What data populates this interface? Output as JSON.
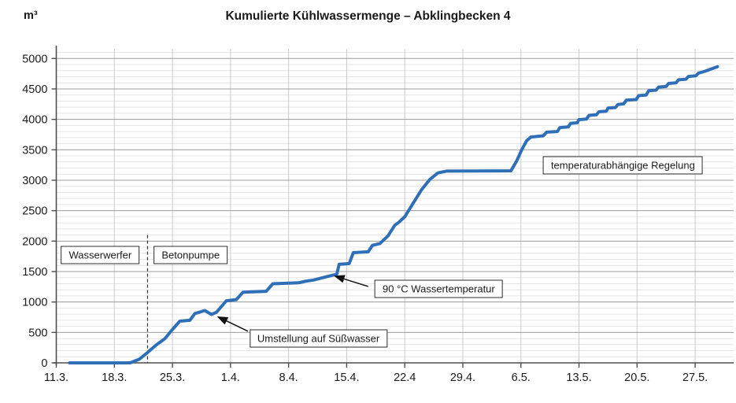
{
  "title": "Kumulierte Kühlwassermenge – Abklingbecken 4",
  "chart_data": {
    "type": "line",
    "title": "Kumulierte Kühlwassermenge – Abklingbecken 4",
    "y_unit_label": "m³",
    "ylim": [
      0,
      5000
    ],
    "y_ticks": [
      0,
      500,
      1000,
      1500,
      2000,
      2500,
      3000,
      3500,
      4000,
      4500,
      5000
    ],
    "grid": "major-and-minor, minor every 100 m³, vertical gridline per week",
    "legend_position": "none",
    "x_ticks": [
      {
        "day": 0,
        "label": "11.3."
      },
      {
        "day": 7,
        "label": "18.3."
      },
      {
        "day": 14,
        "label": "25.3."
      },
      {
        "day": 21,
        "label": "1.4."
      },
      {
        "day": 28,
        "label": "8.4."
      },
      {
        "day": 35,
        "label": "15.4."
      },
      {
        "day": 42,
        "label": "22.4"
      },
      {
        "day": 49,
        "label": "29.4."
      },
      {
        "day": 56,
        "label": "6.5."
      },
      {
        "day": 63,
        "label": "13.5."
      },
      {
        "day": 70,
        "label": "20.5."
      },
      {
        "day": 77,
        "label": "27.5."
      }
    ],
    "x_axis_note": "day = days after 11 March",
    "series": [
      {
        "name": "Kumulierte Kühlwassermenge Abklingbecken 4",
        "color": "#2e6fb8",
        "points": [
          [
            1.6,
            0
          ],
          [
            8.9,
            0
          ],
          [
            10.0,
            60
          ],
          [
            11.0,
            170
          ],
          [
            12.0,
            290
          ],
          [
            13.1,
            400
          ],
          [
            14.0,
            550
          ],
          [
            14.9,
            685
          ],
          [
            16.1,
            700
          ],
          [
            16.7,
            810
          ],
          [
            17.9,
            860
          ],
          [
            18.7,
            795
          ],
          [
            19.3,
            830
          ],
          [
            20.5,
            1020
          ],
          [
            21.7,
            1040
          ],
          [
            22.5,
            1160
          ],
          [
            25.3,
            1175
          ],
          [
            26.1,
            1300
          ],
          [
            29.2,
            1315
          ],
          [
            30.0,
            1340
          ],
          [
            31.0,
            1360
          ],
          [
            33.0,
            1430
          ],
          [
            33.8,
            1455
          ],
          [
            34.1,
            1620
          ],
          [
            35.3,
            1630
          ],
          [
            35.8,
            1810
          ],
          [
            37.6,
            1825
          ],
          [
            38.1,
            1930
          ],
          [
            39.0,
            1960
          ],
          [
            40.0,
            2090
          ],
          [
            40.8,
            2260
          ],
          [
            41.3,
            2310
          ],
          [
            42.0,
            2400
          ],
          [
            43.0,
            2620
          ],
          [
            44.0,
            2840
          ],
          [
            45.0,
            3010
          ],
          [
            46.0,
            3120
          ],
          [
            47.0,
            3150
          ],
          [
            54.8,
            3155
          ],
          [
            55.5,
            3320
          ],
          [
            56.1,
            3500
          ],
          [
            56.7,
            3650
          ],
          [
            57.2,
            3710
          ],
          [
            58.7,
            3730
          ],
          [
            59.1,
            3790
          ],
          [
            60.4,
            3800
          ],
          [
            60.7,
            3865
          ],
          [
            61.7,
            3875
          ],
          [
            62.0,
            3935
          ],
          [
            62.8,
            3945
          ],
          [
            63.0,
            3995
          ],
          [
            63.9,
            4005
          ],
          [
            64.2,
            4065
          ],
          [
            65.1,
            4075
          ],
          [
            65.4,
            4125
          ],
          [
            66.3,
            4135
          ],
          [
            66.5,
            4185
          ],
          [
            67.4,
            4195
          ],
          [
            67.7,
            4245
          ],
          [
            68.4,
            4255
          ],
          [
            68.7,
            4315
          ],
          [
            69.9,
            4325
          ],
          [
            70.2,
            4390
          ],
          [
            71.1,
            4400
          ],
          [
            71.4,
            4470
          ],
          [
            72.3,
            4480
          ],
          [
            72.6,
            4530
          ],
          [
            73.5,
            4540
          ],
          [
            73.8,
            4590
          ],
          [
            74.7,
            4600
          ],
          [
            75.0,
            4650
          ],
          [
            75.9,
            4660
          ],
          [
            76.2,
            4705
          ],
          [
            77.1,
            4715
          ],
          [
            77.4,
            4760
          ],
          [
            78.2,
            4790
          ],
          [
            79.0,
            4830
          ],
          [
            79.7,
            4865
          ]
        ]
      }
    ],
    "event_line": {
      "day": 11.0,
      "top_value": 2100,
      "style": "dashed",
      "meaning": "separates Wasserwerfer and Betonpumpe phases"
    },
    "annotations": [
      {
        "id": "wasserwerfer",
        "label": "Wasserwerfer",
        "center_day": 5.3,
        "center_value": 1770
      },
      {
        "id": "betonpumpe",
        "label": "Betonpumpe",
        "center_day": 16.2,
        "center_value": 1765
      },
      {
        "id": "umstellung",
        "label": "Umstellung auf Süßwasser",
        "center_day": 31.6,
        "center_value": 395,
        "arrow": {
          "from_day": 23.1,
          "from_value": 520,
          "to_day": 19.5,
          "to_value": 755
        }
      },
      {
        "id": "wassertemperatur",
        "label": "90 °C Wassertemperatur",
        "center_day": 46.1,
        "center_value": 1210,
        "arrow": {
          "from_day": 37.6,
          "from_value": 1255,
          "to_day": 33.6,
          "to_value": 1425
        }
      },
      {
        "id": "regelung",
        "label": "temperaturabhängige Regelung",
        "center_day": 68.3,
        "center_value": 3250
      }
    ],
    "colors": {
      "line": "#2e6fb8",
      "grid_major": "#9c9c9c",
      "grid_minor": "#e4e4e4",
      "grid_vertical": "#c9c9c9",
      "axis": "#4d4d4d",
      "annotation_border": "#2b2b2b",
      "text": "#1a1a1a"
    }
  }
}
